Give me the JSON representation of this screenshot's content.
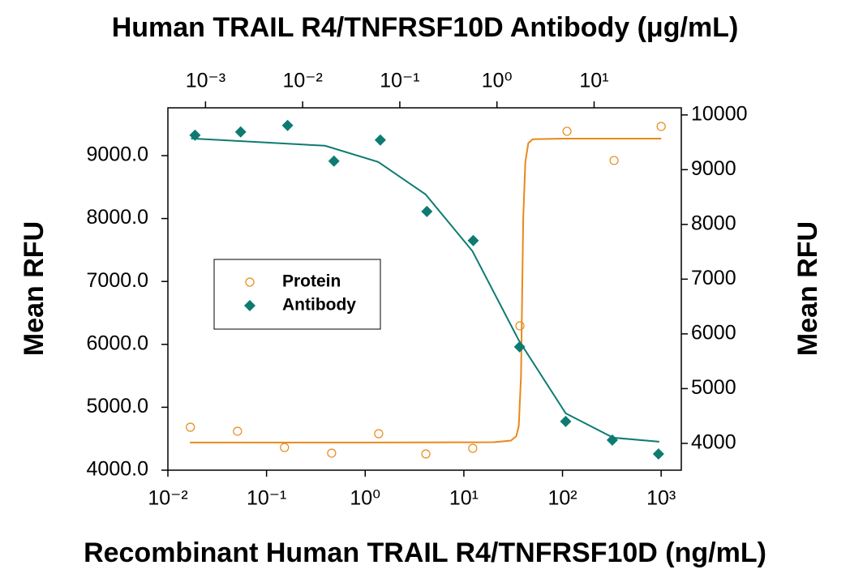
{
  "chart_data": {
    "type": "scatter",
    "title": "Human TRAIL R4/TNFRSF10D Antibody (μg/mL)",
    "x_label": "Recombinant Human TRAIL R4/TNFRSF10D (ng/mL)",
    "y_label": "Mean RFU",
    "y2_label": "Mean RFU",
    "xscale": "log",
    "x2scale": "log",
    "xlim": [
      0.01,
      1600
    ],
    "xticks": [
      {
        "value": 0.01,
        "label": "10⁻²"
      },
      {
        "value": 0.1,
        "label": "10⁻¹"
      },
      {
        "value": 1,
        "label": "10⁰"
      },
      {
        "value": 10,
        "label": "10¹"
      },
      {
        "value": 100,
        "label": "10²"
      },
      {
        "value": 1000,
        "label": "10³"
      }
    ],
    "x2lim": [
      0.00041,
      79
    ],
    "x2ticks": [
      {
        "value": 0.001,
        "label": "10⁻³"
      },
      {
        "value": 0.01,
        "label": "10⁻²"
      },
      {
        "value": 0.1,
        "label": "10⁻¹"
      },
      {
        "value": 1,
        "label": "10⁰"
      },
      {
        "value": 10,
        "label": "10¹"
      }
    ],
    "ylim": [
      4000,
      9760
    ],
    "yticks": [
      {
        "value": 4000,
        "label": "4000.0"
      },
      {
        "value": 5000,
        "label": "5000.0"
      },
      {
        "value": 6000,
        "label": "6000.0"
      },
      {
        "value": 7000,
        "label": "7000.0"
      },
      {
        "value": 8000,
        "label": "8000.0"
      },
      {
        "value": 9000,
        "label": "9000.0"
      }
    ],
    "y2lim": [
      3510,
      10130
    ],
    "y2ticks": [
      4000,
      5000,
      6000,
      7000,
      8000,
      9000,
      10000
    ],
    "legend": "center-left",
    "series": [
      {
        "name": "Protein",
        "color": "#e8891a",
        "marker": "open-circle",
        "axis": "y",
        "xaxis": "x",
        "x": [
          0.0169,
          0.0508,
          0.152,
          0.457,
          1.37,
          4.12,
          12.3,
          37,
          111,
          333,
          1000
        ],
        "values": [
          4683,
          4619,
          4361,
          4271,
          4580,
          4258,
          4348,
          6294,
          9387,
          8923,
          9464
        ],
        "fit": {
          "x": [
            0.0167,
            1,
            20,
            30,
            34,
            36,
            38,
            40,
            42,
            45,
            50,
            100,
            1000
          ],
          "values": [
            4440,
            4440,
            4445,
            4470,
            4540,
            4700,
            5500,
            8000,
            8900,
            9200,
            9260,
            9270,
            9270
          ]
        }
      },
      {
        "name": "Antibody",
        "color": "#0e7b73",
        "marker": "diamond",
        "axis": "y2",
        "xaxis": "x2",
        "x": [
          0.00078,
          0.0023,
          0.007,
          0.021,
          0.063,
          0.19,
          0.57,
          1.71,
          5.1,
          15.4,
          46
        ],
        "values": [
          9630,
          9689,
          9807,
          9156,
          9541,
          8237,
          7704,
          5763,
          4400,
          4059,
          3807
        ],
        "fit": {
          "x": [
            0.00071,
            0.017,
            0.06,
            0.184,
            0.56,
            1.68,
            5.1,
            15.7,
            46.9
          ],
          "values": [
            9570,
            9437,
            9141,
            8548,
            7511,
            5881,
            4548,
            4104,
            4030
          ]
        }
      }
    ]
  }
}
